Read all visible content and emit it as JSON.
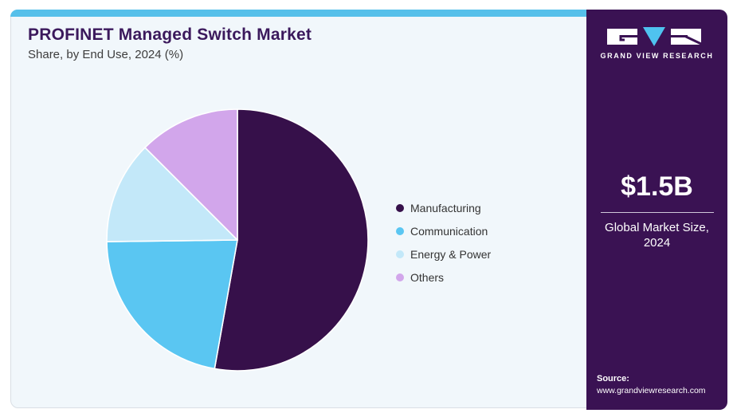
{
  "header": {
    "title": "PROFINET Managed Switch Market",
    "subtitle": "Share, by End Use, 2024 (%)"
  },
  "chart_data": {
    "type": "pie",
    "title": "PROFINET Managed Switch Market Share, by End Use, 2024 (%)",
    "categories": [
      "Manufacturing",
      "Communication",
      "Energy & Power",
      "Others"
    ],
    "values": [
      52.8,
      22.0,
      12.7,
      12.5
    ],
    "unit": "%",
    "colors": [
      "#36104a",
      "#5ac6f2",
      "#c3e8f9",
      "#d2a6eb"
    ],
    "legend_position": "right",
    "start_angle_deg": 0,
    "direction": "clockwise",
    "slice_border_color": "#ffffff"
  },
  "sidebar": {
    "logo_text": "GRAND VIEW RESEARCH",
    "market_size": "$1.5B",
    "market_label": "Global Market Size, 2024",
    "source_label": "Source:",
    "source_url": "www.grandviewresearch.com"
  },
  "theme": {
    "card_bg": "#f1f7fb",
    "card_border": "#d9dee4",
    "top_strip": "#56c0ea",
    "sidebar_bg": "#3a1253",
    "title_color": "#3b195c",
    "subtitle_color": "#3d3d3d",
    "legend_text_color": "#333333",
    "divider_color": "#cfc8d9",
    "logo_accent": "#4fc3ef"
  }
}
